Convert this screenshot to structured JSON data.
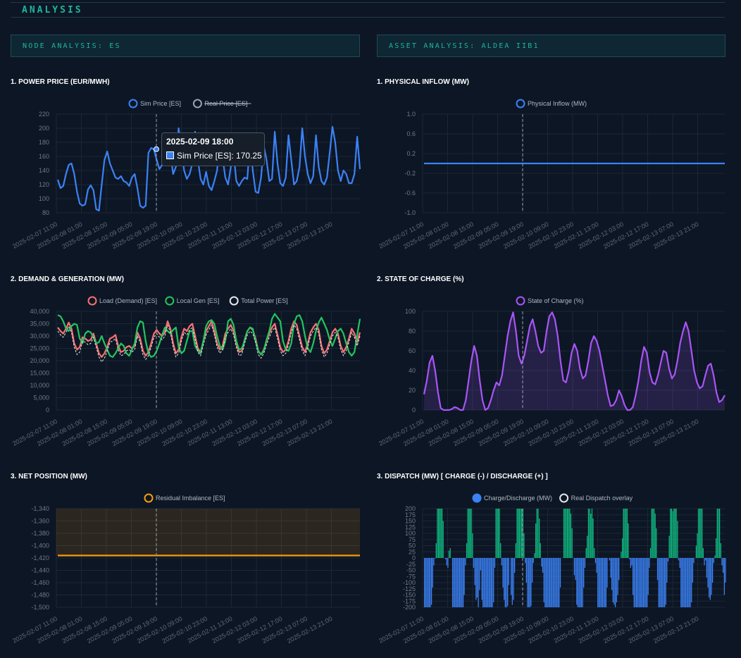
{
  "page": {
    "title": "ANALYSIS"
  },
  "sections": {
    "node": {
      "label": "NODE ANALYSIS: ES"
    },
    "asset": {
      "label": "ASSET ANALYSIS: ALDEA IIB1"
    }
  },
  "x_ticks": [
    "2025-02-07 11:00",
    "2025-02-08 01:00",
    "2025-02-08 15:00",
    "2025-02-09 05:00",
    "2025-02-09 19:00",
    "2025-02-10 09:00",
    "2025-02-10 23:00",
    "2025-02-11 13:00",
    "2025-02-12 03:00",
    "2025-02-12 17:00",
    "2025-02-13 07:00",
    "2025-02-13 21:00"
  ],
  "hover": {
    "time": "2025-02-09 18:00",
    "series_label": "Sim Price [ES]: 170.25"
  },
  "colors": {
    "blue": "#3b82f6",
    "red": "#f87171",
    "green": "#22c55e",
    "purple": "#a855f7",
    "orange": "#f59e0b",
    "teal": "#1fb5a0",
    "dispatch_pos": "#10b981"
  },
  "chart_data": [
    {
      "id": "price",
      "title": "1. POWER PRICE (EUR/MWH)",
      "type": "line",
      "ylim": [
        80,
        220
      ],
      "yticks": [
        80,
        100,
        120,
        140,
        160,
        180,
        200,
        220
      ],
      "series": [
        {
          "name": "Sim Price [ES]",
          "color": "#3b82f6",
          "legend": "Sim Price [ES]",
          "values": [
            127,
            115,
            118,
            135,
            148,
            150,
            135,
            110,
            93,
            90,
            92,
            113,
            119,
            112,
            85,
            83,
            120,
            155,
            167,
            150,
            140,
            130,
            128,
            132,
            125,
            123,
            118,
            130,
            135,
            115,
            90,
            87,
            90,
            165,
            172,
            170,
            155,
            142,
            148,
            150,
            158,
            165,
            135,
            145,
            200,
            170,
            140,
            128,
            135,
            150,
            195,
            155,
            128,
            120,
            138,
            118,
            112,
            125,
            140,
            185,
            158,
            130,
            120,
            145,
            165,
            125,
            118,
            125,
            130,
            128,
            180,
            140,
            110,
            108,
            130,
            175,
            155,
            125,
            128,
            195,
            150,
            122,
            118,
            130,
            190,
            155,
            120,
            125,
            145,
            200,
            160,
            135,
            122,
            132,
            190,
            145,
            125,
            120,
            130,
            165,
            202,
            180,
            140,
            125,
            140,
            135,
            122,
            122,
            135,
            188,
            142
          ]
        },
        {
          "name": "Real Price [ES]",
          "color": "#94a3b8",
          "legend": "Real Price [ES]",
          "hidden": true,
          "values": []
        }
      ]
    },
    {
      "id": "inflow",
      "title": "1. PHYSICAL INFLOW (MW)",
      "type": "line",
      "ylim": [
        -1.0,
        1.0
      ],
      "yticks": [
        "-1.0",
        "-0.6",
        "-0.2",
        "0.2",
        "0.6",
        "1.0"
      ],
      "series": [
        {
          "name": "Physical Inflow (MW)",
          "color": "#3b82f6",
          "legend": "Physical Inflow (MW)",
          "values": [
            0,
            0
          ]
        }
      ]
    },
    {
      "id": "demand",
      "title": "2. DEMAND & GENERATION (MW)",
      "type": "line",
      "ylim": [
        0,
        40000
      ],
      "yticks": [
        "0",
        "5,000",
        "10,000",
        "15,000",
        "20,000",
        "25,000",
        "30,000",
        "35,000",
        "40,000"
      ],
      "series": [
        {
          "name": "Load (Demand) [ES]",
          "color": "#f87171",
          "legend": "Load (Demand) [ES]",
          "values": [
            33500,
            32000,
            31000,
            33000,
            35500,
            33000,
            27000,
            24500,
            25500,
            29500,
            29000,
            28000,
            28500,
            31000,
            27000,
            23000,
            21500,
            23000,
            25500,
            29000,
            29500,
            30500,
            26000,
            23500,
            24000,
            25500,
            26000,
            25000,
            26000,
            31500,
            29000,
            24000,
            22000,
            23500,
            27000,
            31000,
            32500,
            31000,
            30000,
            31500,
            36000,
            33000,
            27000,
            23000,
            24500,
            29500,
            33000,
            32000,
            34000,
            35000,
            30000,
            25000,
            23500,
            28000,
            32000,
            34000,
            36000,
            32000,
            27000,
            24500,
            26000,
            31000,
            33000,
            34500,
            32000,
            27000,
            23500,
            24000,
            28500,
            32000,
            33500,
            32500,
            29000,
            24000,
            22500,
            24500,
            28000,
            31000,
            33500,
            35000,
            30500,
            25500,
            23500,
            24500,
            28000,
            33000,
            36000,
            34500,
            30000,
            25500,
            23500,
            27000,
            31500,
            33500,
            35000,
            32500,
            26000,
            23000,
            24500,
            28000,
            31500,
            33000,
            31000,
            26000,
            23500,
            25500,
            29000,
            33000,
            31000,
            27500,
            31500
          ]
        },
        {
          "name": "Local Gen [ES]",
          "color": "#22c55e",
          "legend": "Local Gen [ES]",
          "values": [
            38500,
            38000,
            36000,
            33000,
            32000,
            34000,
            35000,
            34500,
            29000,
            27000,
            31000,
            32000,
            31500,
            29500,
            27000,
            27500,
            30000,
            27000,
            24500,
            22000,
            21500,
            23000,
            25000,
            27000,
            26000,
            23000,
            22000,
            24500,
            27000,
            33500,
            36000,
            35500,
            28000,
            23000,
            21500,
            22000,
            24000,
            27000,
            30500,
            33500,
            32000,
            31000,
            32500,
            33500,
            25500,
            23000,
            24000,
            28000,
            32000,
            32000,
            26000,
            24000,
            23000,
            28000,
            34000,
            36000,
            36500,
            35000,
            30000,
            26000,
            24500,
            28000,
            36000,
            37000,
            34500,
            28000,
            24500,
            25000,
            28000,
            32000,
            33500,
            33000,
            28000,
            24000,
            22500,
            24000,
            28500,
            32000,
            37000,
            39000,
            37500,
            36000,
            28000,
            24500,
            24000,
            27000,
            35000,
            38000,
            38500,
            36000,
            30000,
            25000,
            23500,
            27000,
            32000,
            35500,
            37500,
            35000,
            32500,
            28500,
            26000,
            29000,
            32000,
            33000,
            31000,
            27000,
            23500,
            22000,
            23500,
            30500,
            37000
          ]
        },
        {
          "name": "Total Power [ES]",
          "color": "#e5e7eb",
          "legend": "Total Power [ES]",
          "dashed": true,
          "values": [
            32000,
            30500,
            29500,
            31500,
            34000,
            31500,
            25500,
            22500,
            23500,
            28000,
            27500,
            26500,
            27000,
            29500,
            25500,
            21500,
            19500,
            21000,
            24000,
            27500,
            28000,
            29000,
            24500,
            22000,
            22500,
            24000,
            24500,
            23500,
            24500,
            30000,
            27500,
            22500,
            20500,
            22000,
            25500,
            29500,
            31000,
            29500,
            28500,
            30000,
            34500,
            31500,
            25500,
            21500,
            23000,
            28000,
            31500,
            30500,
            32500,
            33500,
            28500,
            23500,
            22000,
            26500,
            30500,
            32500,
            34500,
            30500,
            25500,
            23000,
            24500,
            29500,
            31500,
            33000,
            30500,
            25500,
            22000,
            22500,
            27000,
            30500,
            32000,
            31000,
            27500,
            22500,
            21000,
            23000,
            26500,
            29500,
            32000,
            33500,
            29000,
            24000,
            22000,
            23000,
            26500,
            31500,
            34500,
            33000,
            28500,
            24000,
            22000,
            25500,
            30000,
            32000,
            33500,
            31000,
            24500,
            21500,
            23000,
            26500,
            30000,
            31500,
            29500,
            24500,
            22000,
            24000,
            27500,
            31500,
            29500,
            26000,
            30000
          ]
        }
      ]
    },
    {
      "id": "soc",
      "title": "2. STATE OF CHARGE (%)",
      "type": "area",
      "ylim": [
        0,
        100
      ],
      "yticks": [
        "0",
        "20",
        "40",
        "60",
        "80",
        "100"
      ],
      "series": [
        {
          "name": "State of Charge (%)",
          "color": "#a855f7",
          "legend": "State of Charge (%)",
          "values": [
            16,
            30,
            48,
            55,
            40,
            18,
            2,
            0,
            0,
            0,
            1,
            3,
            2,
            0,
            0,
            10,
            30,
            50,
            65,
            55,
            30,
            10,
            0,
            2,
            10,
            20,
            28,
            25,
            35,
            55,
            75,
            90,
            99,
            80,
            55,
            47,
            55,
            70,
            85,
            92,
            80,
            65,
            58,
            60,
            80,
            95,
            99,
            92,
            75,
            50,
            30,
            28,
            40,
            58,
            67,
            60,
            42,
            32,
            35,
            50,
            68,
            75,
            70,
            60,
            45,
            30,
            15,
            4,
            5,
            10,
            20,
            14,
            5,
            0,
            0,
            3,
            15,
            30,
            50,
            64,
            58,
            38,
            28,
            26,
            35,
            48,
            60,
            58,
            42,
            32,
            36,
            50,
            68,
            80,
            89,
            80,
            60,
            40,
            28,
            22,
            24,
            35,
            45,
            47,
            35,
            18,
            8,
            10,
            15
          ]
        }
      ]
    },
    {
      "id": "net",
      "title": "3. NET POSITION (MW)",
      "type": "line",
      "ylim": [
        -1500,
        -1340
      ],
      "yticks": [
        "-1,500",
        "-1,480",
        "-1,460",
        "-1,440",
        "-1,420",
        "-1,400",
        "-1,380",
        "-1,360",
        "-1,340"
      ],
      "series": [
        {
          "name": "Residual Imbalance [ES]",
          "color": "#f59e0b",
          "legend": "Residual Imbalance [ES]",
          "values": [
            -1416,
            -1416
          ]
        }
      ]
    },
    {
      "id": "dispatch",
      "title": "3. DISPATCH (MW) [ CHARGE (-) / DISCHARGE (+) ]",
      "type": "bar",
      "ylim": [
        -200,
        200
      ],
      "yticks": [
        "-200",
        "-175",
        "-150",
        "-125",
        "-100",
        "-75",
        "-50",
        "-25",
        "0",
        "25",
        "50",
        "75",
        "100",
        "125",
        "150",
        "175",
        "200"
      ],
      "series": [
        {
          "name": "Charge/Discharge (MW)",
          "color": "#3b82f6",
          "legend": "Charge/Discharge (MW)",
          "values": [
            -200,
            -200,
            -200,
            -200,
            -200,
            -200,
            -190,
            -120,
            -30,
            -2,
            60,
            200,
            200,
            200,
            200,
            200,
            150,
            0,
            -5,
            -30,
            -40,
            30,
            40,
            0,
            -200,
            -200,
            -200,
            -200,
            -200,
            -200,
            -200,
            -200,
            -200,
            -200,
            -150,
            -30,
            60,
            200,
            200,
            200,
            200,
            100,
            -40,
            -110,
            -170,
            -160,
            -200,
            -130,
            -50,
            -170,
            -200,
            -200,
            -200,
            -200,
            -200,
            -200,
            -200,
            -200,
            -200,
            -180,
            -40,
            200,
            200,
            200,
            200,
            60,
            -30,
            -120,
            -170,
            -200,
            -200,
            -195,
            -110,
            0,
            -150,
            -190,
            -170,
            -60,
            60,
            200,
            200,
            200,
            200,
            200,
            200,
            100,
            -20,
            -100,
            -200,
            -200,
            -200,
            -195,
            -100,
            -20,
            20,
            140,
            200,
            200,
            160,
            60,
            -35,
            -60,
            -180,
            -200,
            -200,
            -200,
            -200,
            -200,
            -200,
            -200,
            -200,
            -200,
            -200,
            -200,
            -200,
            -200,
            -120,
            0,
            0,
            200,
            200,
            200,
            200,
            200,
            200,
            180,
            120,
            0,
            -70,
            -90,
            -190,
            -200,
            -200,
            -200,
            -200,
            -200,
            -120,
            -40,
            40,
            90,
            200,
            200,
            180,
            200,
            160,
            40,
            -20,
            -60,
            -200,
            -200,
            -200,
            -200,
            -200,
            -200,
            -200,
            -200,
            -120,
            0,
            -10,
            -80,
            -130,
            -180,
            -190,
            -200,
            -180,
            -150,
            -90,
            0,
            25,
            80,
            200,
            200,
            200,
            200,
            140,
            -5,
            -40,
            -30,
            -150,
            -200,
            -200,
            -200,
            -200,
            -200,
            -200,
            -200,
            -200,
            -200,
            -200,
            -200,
            -200,
            -150,
            -40,
            40,
            200,
            200,
            200,
            180,
            120,
            -90,
            -200,
            -200,
            -200,
            -200,
            -200,
            -200,
            -190,
            -100,
            -15,
            90,
            200,
            200,
            190,
            200,
            200,
            200,
            150,
            -10,
            -40,
            -200,
            -200,
            -200,
            -200,
            -200,
            -200,
            -200,
            -200,
            -200,
            -180,
            -100,
            -20,
            0,
            50,
            100,
            200,
            200,
            200,
            200,
            40,
            -30,
            -10,
            -80,
            -120,
            -160,
            -170,
            -150,
            -100,
            -20,
            10,
            80,
            200,
            200,
            200,
            60,
            -30,
            -60,
            -150,
            -100
          ]
        },
        {
          "name": "Real Dispatch overlay",
          "color": "#e5e7eb",
          "legend": "Real Dispatch overlay",
          "values": []
        }
      ]
    }
  ]
}
